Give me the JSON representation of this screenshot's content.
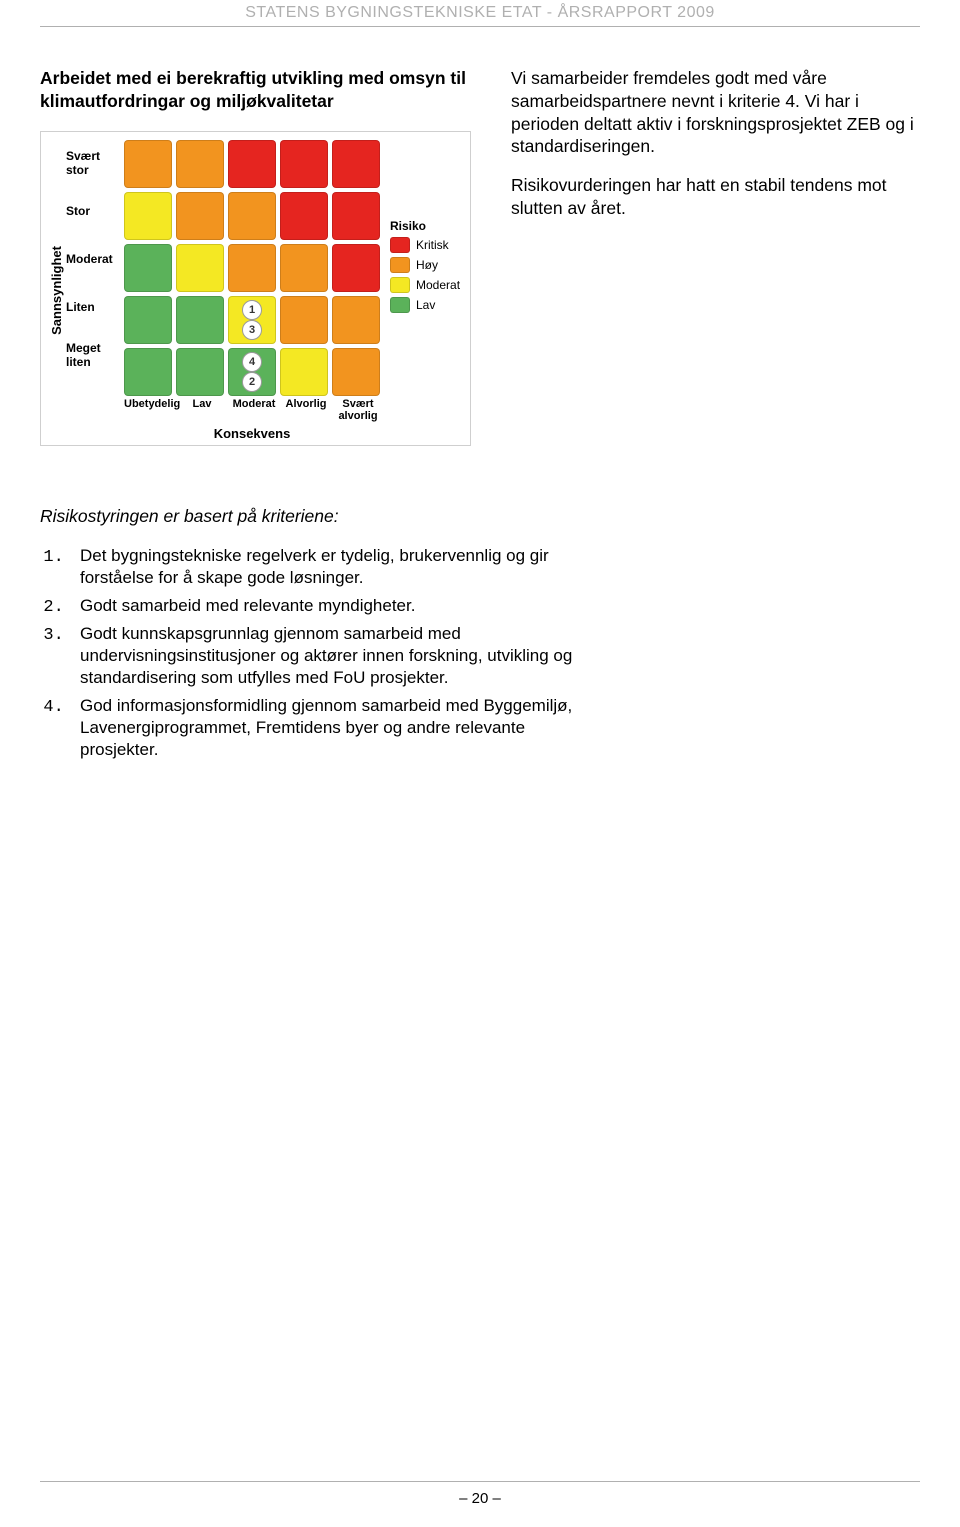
{
  "header": "STATENS BYGNINGSTEKNISKE ETAT - ÅRSRAPPORT 2009",
  "left_heading": "Arbeidet med ei berekraftig utvikling med omsyn til klimautfordringar og miljøkvalitetar",
  "right_paragraphs": [
    "Vi samarbeider fremdeles godt med våre samarbeidspartnere nevnt i kriterie 4. Vi har i perioden deltatt aktiv i forskningsprosjektet ZEB og i standardiseringen.",
    "Risikovurderingen har hatt en stabil tendens mot slutten av året."
  ],
  "criteria_intro": "Risikostyringen er basert på kriteriene:",
  "criteria": [
    "Det bygningstekniske regelverk er tydelig, brukervennlig og gir forståelse for å skape gode løsninger.",
    "Godt samarbeid med relevante myndigheter.",
    "Godt kunnskapsgrunnlag gjennom samarbeid med undervisningsinstitusjoner og aktører innen forskning, utvikling og standardisering som utfylles med FoU prosjekter.",
    "God informasjonsformidling gjennom samarbeid med Byggemiljø, Lavenergiprogrammet, Fremtidens byer og andre relevante prosjekter."
  ],
  "page_number": "– 20 –",
  "matrix": {
    "y_axis_title": "Sannsynlighet",
    "x_axis_title": "Konsekvens",
    "row_labels": [
      "Svært stor",
      "Stor",
      "Moderat",
      "Liten",
      "Meget liten"
    ],
    "col_labels": [
      "Ubetydelig",
      "Lav",
      "Moderat",
      "Alvorlig",
      "Svært alvorlig"
    ],
    "colors": {
      "kritisk": "#e52520",
      "hoy": "#f2941f",
      "moderat": "#f4e823",
      "lav": "#5bb25a"
    },
    "grid_levels": [
      [
        "hoy",
        "hoy",
        "kritisk",
        "kritisk",
        "kritisk"
      ],
      [
        "moderat",
        "hoy",
        "hoy",
        "kritisk",
        "kritisk"
      ],
      [
        "lav",
        "moderat",
        "hoy",
        "hoy",
        "kritisk"
      ],
      [
        "lav",
        "lav",
        "moderat",
        "hoy",
        "hoy"
      ],
      [
        "lav",
        "lav",
        "lav",
        "moderat",
        "hoy"
      ]
    ],
    "markers": [
      {
        "label": "1",
        "row": 3,
        "col": 2,
        "pos": "top"
      },
      {
        "label": "3",
        "row": 3,
        "col": 2,
        "pos": "bottom"
      },
      {
        "label": "4",
        "row": 4,
        "col": 2,
        "pos": "top"
      },
      {
        "label": "2",
        "row": 4,
        "col": 2,
        "pos": "bottom"
      }
    ],
    "legend": {
      "title": "Risiko",
      "items": [
        {
          "label": "Kritisk",
          "color_key": "kritisk"
        },
        {
          "label": "Høy",
          "color_key": "hoy"
        },
        {
          "label": "Moderat",
          "color_key": "moderat"
        },
        {
          "label": "Lav",
          "color_key": "lav"
        }
      ]
    }
  }
}
